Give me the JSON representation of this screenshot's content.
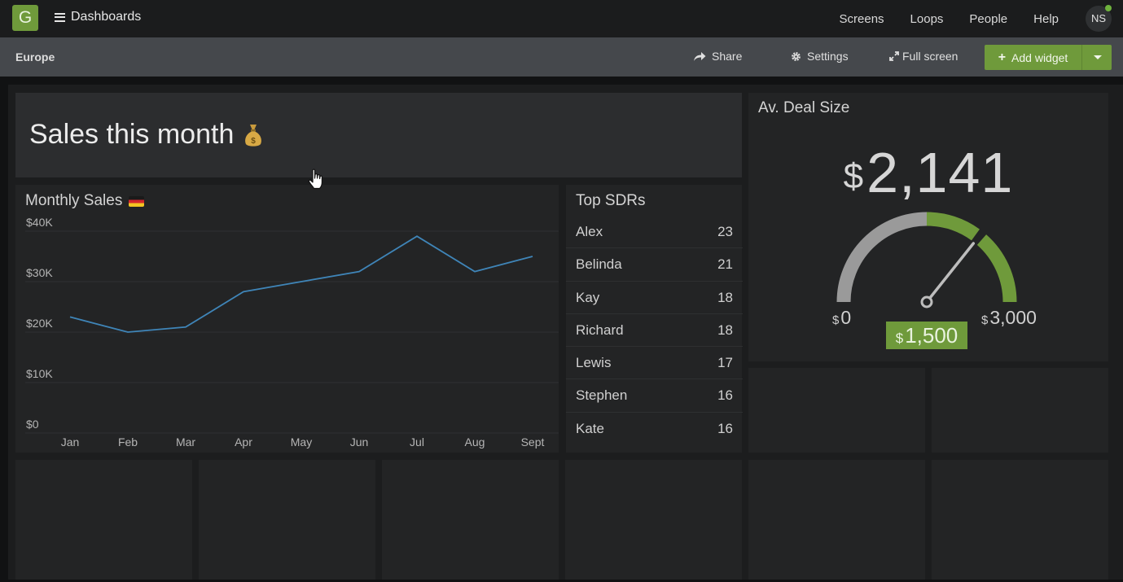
{
  "topbar": {
    "logo_letter": "G",
    "menu_label": "Dashboards",
    "links": [
      "Screens",
      "Loops",
      "People",
      "Help"
    ],
    "avatar_initials": "NS"
  },
  "subbar": {
    "dashboard_name": "Europe",
    "share_label": "Share",
    "settings_label": "Settings",
    "fullscreen_label": "Full screen",
    "add_widget_label": "Add widget"
  },
  "title_widget": {
    "text": "Sales this month"
  },
  "monthly_sales": {
    "title": "Monthly Sales",
    "y_ticks": [
      "$40K",
      "$30K",
      "$20K",
      "$10K",
      "$0"
    ],
    "x_labels": [
      "Jan",
      "Feb",
      "Mar",
      "Apr",
      "May",
      "Jun",
      "Jul",
      "Aug",
      "Sept"
    ],
    "line_color": "#3f85b8"
  },
  "chart_data": {
    "type": "line",
    "x": [
      "Jan",
      "Feb",
      "Mar",
      "Apr",
      "May",
      "Jun",
      "Jul",
      "Aug",
      "Sept"
    ],
    "series": [
      {
        "values": [
          23000,
          20000,
          21000,
          28000,
          30000,
          32000,
          39000,
          32000,
          35000
        ]
      }
    ],
    "ylim": [
      0,
      40000
    ],
    "grid": true
  },
  "top_sdrs": {
    "title": "Top SDRs",
    "rows": [
      {
        "name": "Alex",
        "value": "23"
      },
      {
        "name": "Belinda",
        "value": "21"
      },
      {
        "name": "Kay",
        "value": "18"
      },
      {
        "name": "Richard",
        "value": "18"
      },
      {
        "name": "Lewis",
        "value": "17"
      },
      {
        "name": "Stephen",
        "value": "16"
      },
      {
        "name": "Kate",
        "value": "16"
      }
    ]
  },
  "deal_size": {
    "title": "Av. Deal Size",
    "currency": "$",
    "value": "2,141",
    "min": "0",
    "max": "3,000",
    "target": "1,500",
    "fraction": 0.714,
    "target_fraction": 0.5,
    "accent": "#6f9a3b",
    "track": "#9a9a9a"
  }
}
